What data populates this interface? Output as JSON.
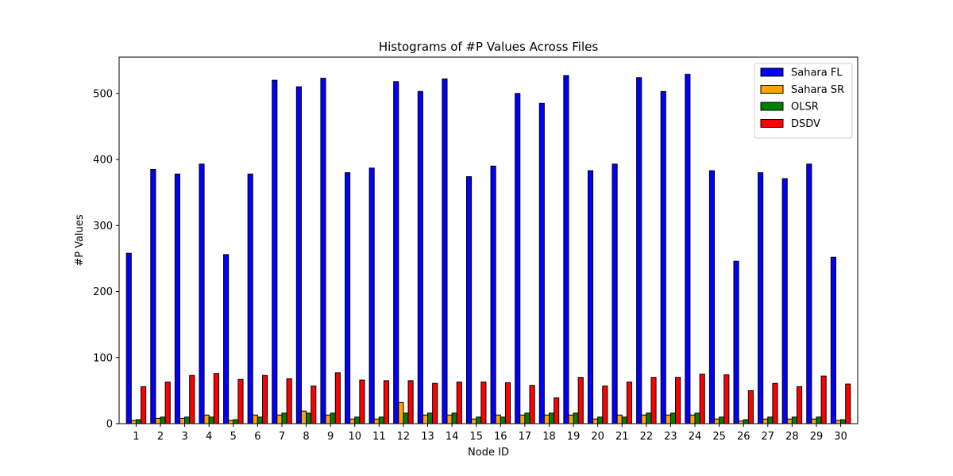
{
  "chart_data": {
    "type": "bar",
    "title": "Histograms of #P Values Across Files",
    "xlabel": "Node ID",
    "ylabel": "#P Values",
    "ylim": [
      0,
      555
    ],
    "yticks": [
      0,
      100,
      200,
      300,
      400,
      500
    ],
    "legend_position": "top-right",
    "grid": false,
    "categories": [
      "1",
      "2",
      "3",
      "4",
      "5",
      "6",
      "7",
      "8",
      "9",
      "10",
      "11",
      "12",
      "13",
      "14",
      "15",
      "16",
      "17",
      "18",
      "19",
      "20",
      "21",
      "22",
      "23",
      "24",
      "25",
      "26",
      "27",
      "28",
      "29",
      "30"
    ],
    "series": [
      {
        "name": "Sahara FL",
        "color": "#0000ff",
        "values": [
          258,
          385,
          378,
          393,
          256,
          378,
          520,
          510,
          523,
          380,
          387,
          518,
          503,
          522,
          374,
          390,
          500,
          485,
          527,
          383,
          393,
          524,
          503,
          529,
          383,
          246,
          380,
          371,
          393,
          252
        ]
      },
      {
        "name": "Sahara SR",
        "color": "#ffa500",
        "values": [
          5,
          8,
          8,
          13,
          5,
          13,
          13,
          19,
          13,
          7,
          7,
          32,
          13,
          13,
          7,
          13,
          13,
          13,
          13,
          7,
          13,
          13,
          13,
          13,
          7,
          4,
          7,
          7,
          7,
          5
        ]
      },
      {
        "name": "OLSR",
        "color": "#008000",
        "values": [
          6,
          10,
          10,
          10,
          6,
          10,
          16,
          16,
          16,
          10,
          10,
          16,
          16,
          16,
          10,
          10,
          16,
          16,
          16,
          10,
          10,
          16,
          16,
          16,
          10,
          6,
          10,
          10,
          10,
          6
        ]
      },
      {
        "name": "DSDV",
        "color": "#ff0000",
        "values": [
          56,
          63,
          73,
          76,
          67,
          73,
          68,
          57,
          77,
          66,
          65,
          65,
          61,
          63,
          63,
          62,
          58,
          39,
          70,
          57,
          63,
          70,
          70,
          75,
          74,
          50,
          61,
          56,
          72,
          60
        ]
      }
    ]
  }
}
